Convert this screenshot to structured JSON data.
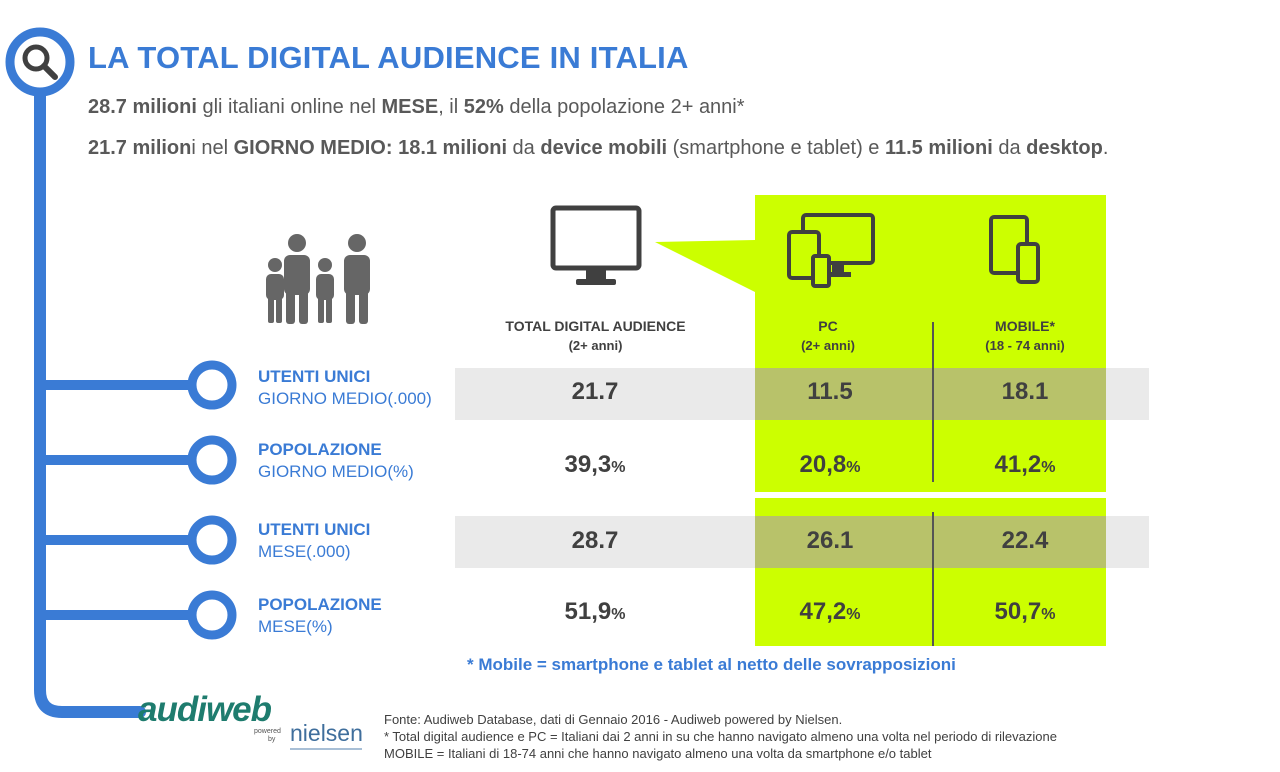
{
  "title": "LA TOTAL DIGITAL AUDIENCE IN ITALIA",
  "subtitle_line1": {
    "num1": "28.7 milioni",
    "text1": " gli italiani online nel ",
    "strong1": "MESE",
    "text2": ", il ",
    "strong2": "52%",
    "text3": " della popolazione 2+ anni*"
  },
  "subtitle_line2": {
    "num1": "21.7 milion",
    "text1": "i nel ",
    "strong1": "GIORNO MEDIO: 18.1 milioni",
    "text2": " da ",
    "strong2": "device mobili",
    "text3": " (smartphone e tablet) e ",
    "strong3": "11.5 milioni",
    "text4": " da ",
    "strong4": "desktop",
    "text5": "."
  },
  "columns": {
    "total": {
      "label": "TOTAL DIGITAL AUDIENCE",
      "sub": "(2+ anni)"
    },
    "pc": {
      "label": "PC",
      "sub": "(2+ anni)"
    },
    "mobile": {
      "label": "MOBILE*",
      "sub": "(18 - 74 anni)"
    }
  },
  "rows": [
    {
      "label1": "UTENTI UNICI",
      "label2": "GIORNO MEDIO(.000)",
      "total": "21.7",
      "total_pct": "",
      "pc": "11.5",
      "pc_pct": "",
      "mobile": "18.1",
      "mobile_pct": ""
    },
    {
      "label1": "POPOLAZIONE",
      "label2": "GIORNO MEDIO(%)",
      "total": "39,3",
      "total_pct": "%",
      "pc": "20,8",
      "pc_pct": "%",
      "mobile": "41,2",
      "mobile_pct": "%"
    },
    {
      "label1": "UTENTI UNICI",
      "label2": "MESE(.000)",
      "total": "28.7",
      "total_pct": "",
      "pc": "26.1",
      "pc_pct": "",
      "mobile": "22.4",
      "mobile_pct": ""
    },
    {
      "label1": "POPOLAZIONE",
      "label2": "MESE(%)",
      "total": "51,9",
      "total_pct": "%",
      "pc": "47,2",
      "pc_pct": "%",
      "mobile": "50,7",
      "mobile_pct": "%"
    }
  ],
  "mobile_note": "* Mobile = smartphone e tablet al netto delle sovrapposizioni",
  "sources": [
    "Fonte: Audiweb Database, dati di Gennaio 2016 - Audiweb powered by Nielsen.",
    "* Total digital audience e PC = Italiani dai 2 anni in su che hanno navigato almeno una volta nel periodo di rilevazione",
    "MOBILE = Italiani di 18-74 anni che hanno navigato almeno una volta da smartphone e/o tablet"
  ],
  "logo": {
    "audiweb": "audiweb",
    "powered": "powered",
    "by": "by",
    "nielsen": "nielsen"
  },
  "colors": {
    "accent_blue": "#3a7bd5",
    "highlight_lime": "#ccff00",
    "text_gray": "#595959",
    "band_gray": "#eaeaea",
    "logo_green": "#1e7c6e"
  },
  "icons": [
    "magnifier-icon",
    "family-icon",
    "monitor-icon",
    "multi-device-icon",
    "mobile-devices-icon"
  ]
}
